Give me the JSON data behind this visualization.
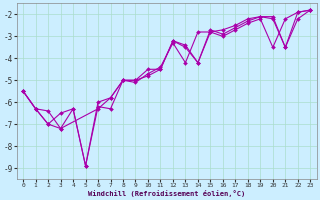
{
  "xlabel": "Windchill (Refroidissement éolien,°C)",
  "background_color": "#cceeff",
  "grid_color": "#aaddcc",
  "line_color": "#aa00aa",
  "xlim": [
    -0.5,
    23.5
  ],
  "ylim": [
    -9.5,
    -1.5
  ],
  "yticks": [
    -9,
    -8,
    -7,
    -6,
    -5,
    -4,
    -3,
    -2
  ],
  "xticks": [
    0,
    1,
    2,
    3,
    4,
    5,
    6,
    7,
    8,
    9,
    10,
    11,
    12,
    13,
    14,
    15,
    16,
    17,
    18,
    19,
    20,
    21,
    22,
    23
  ],
  "series1": [
    [
      0,
      -5.5
    ],
    [
      1,
      -6.3
    ],
    [
      2,
      -7.0
    ],
    [
      3,
      -7.2
    ],
    [
      4,
      -6.3
    ],
    [
      5,
      -8.9
    ],
    [
      6,
      -6.2
    ],
    [
      7,
      -6.3
    ],
    [
      8,
      -5.0
    ],
    [
      9,
      -5.0
    ],
    [
      10,
      -4.8
    ],
    [
      11,
      -4.5
    ],
    [
      12,
      -3.2
    ],
    [
      13,
      -3.5
    ],
    [
      14,
      -4.2
    ],
    [
      15,
      -2.8
    ],
    [
      16,
      -3.0
    ],
    [
      17,
      -2.7
    ],
    [
      18,
      -2.4
    ],
    [
      19,
      -2.2
    ],
    [
      20,
      -3.5
    ],
    [
      21,
      -2.2
    ],
    [
      22,
      -1.9
    ],
    [
      23,
      -1.8
    ]
  ],
  "series2": [
    [
      0,
      -5.5
    ],
    [
      1,
      -6.3
    ],
    [
      2,
      -7.0
    ],
    [
      3,
      -6.5
    ],
    [
      4,
      -6.3
    ],
    [
      5,
      -8.9
    ],
    [
      6,
      -6.0
    ],
    [
      7,
      -5.8
    ],
    [
      8,
      -5.0
    ],
    [
      9,
      -5.1
    ],
    [
      10,
      -4.7
    ],
    [
      11,
      -4.4
    ],
    [
      12,
      -3.3
    ],
    [
      13,
      -4.2
    ],
    [
      14,
      -2.8
    ],
    [
      15,
      -2.8
    ],
    [
      16,
      -2.7
    ],
    [
      17,
      -2.5
    ],
    [
      18,
      -2.2
    ],
    [
      19,
      -2.1
    ],
    [
      20,
      -2.2
    ],
    [
      21,
      -3.5
    ],
    [
      22,
      -1.9
    ],
    [
      23,
      -1.8
    ]
  ],
  "series3": [
    [
      0,
      -5.5
    ],
    [
      1,
      -6.3
    ],
    [
      2,
      -6.4
    ],
    [
      3,
      -7.2
    ],
    [
      6,
      -6.3
    ],
    [
      7,
      -5.8
    ],
    [
      8,
      -5.0
    ],
    [
      9,
      -5.0
    ],
    [
      10,
      -4.5
    ],
    [
      11,
      -4.5
    ],
    [
      12,
      -3.2
    ],
    [
      13,
      -3.4
    ],
    [
      14,
      -4.2
    ],
    [
      15,
      -2.7
    ],
    [
      16,
      -2.9
    ],
    [
      17,
      -2.6
    ],
    [
      18,
      -2.3
    ],
    [
      19,
      -2.1
    ],
    [
      20,
      -2.1
    ],
    [
      21,
      -3.5
    ],
    [
      22,
      -2.2
    ],
    [
      23,
      -1.8
    ]
  ]
}
